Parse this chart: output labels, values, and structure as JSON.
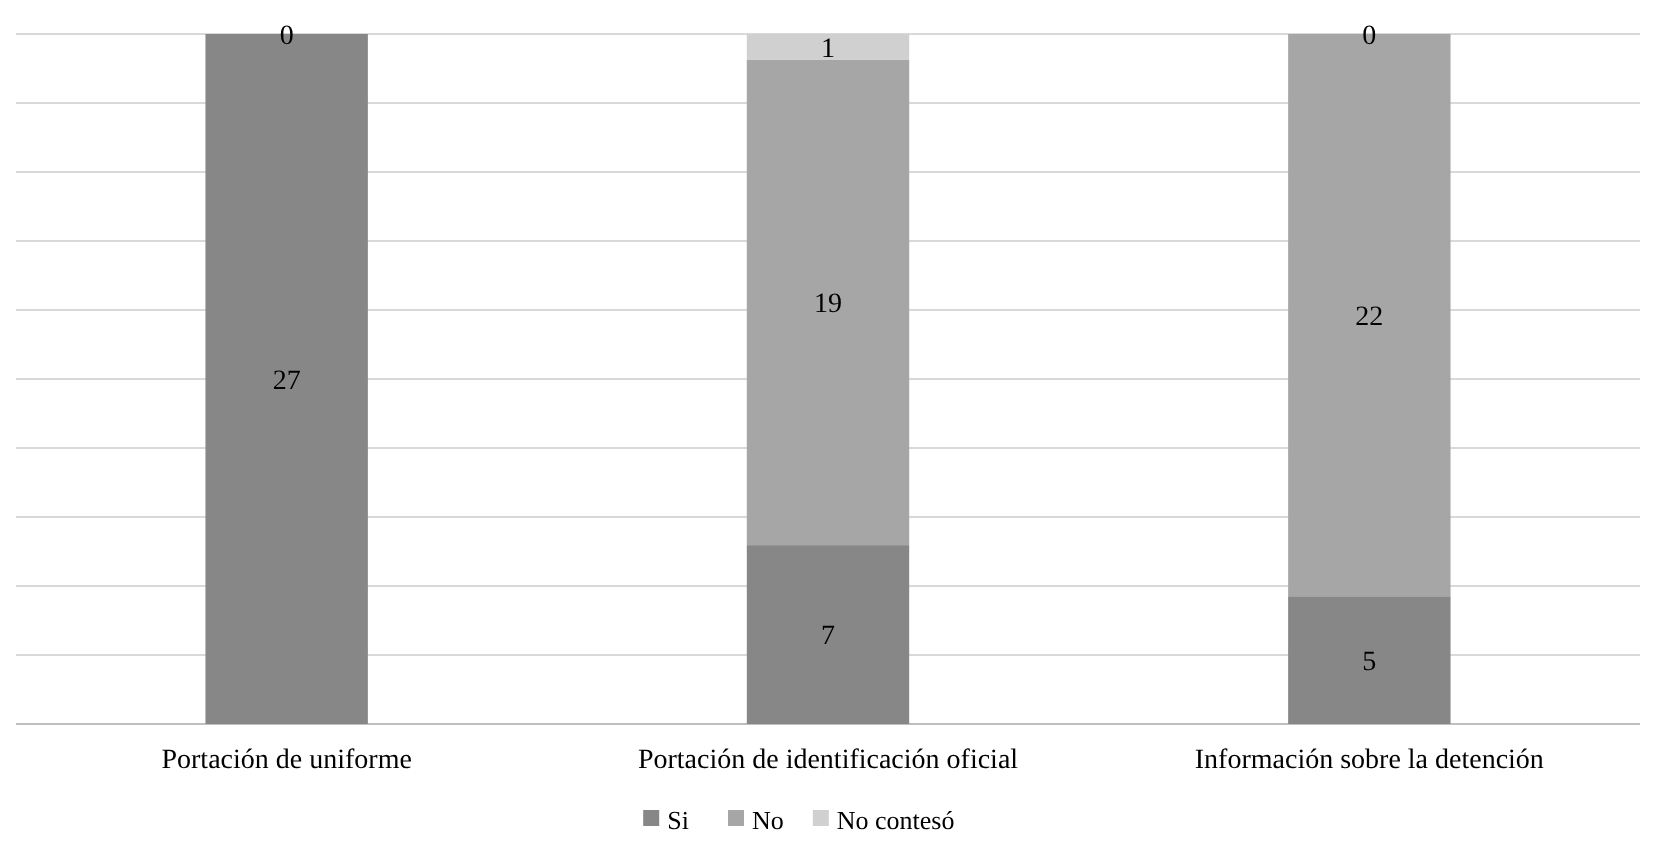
{
  "chart_data": {
    "type": "bar",
    "stacked": true,
    "categories": [
      "Portación de uniforme",
      "Portación de identificación oficial",
      "Información sobre la detención"
    ],
    "series": [
      {
        "name": "Si",
        "color": "#878787",
        "values": [
          27,
          7,
          5
        ]
      },
      {
        "name": "No",
        "color": "#a6a6a6",
        "values": [
          0,
          19,
          22
        ]
      },
      {
        "name": "No contesó",
        "color": "#d0d0d0",
        "values": [
          null,
          1,
          0
        ]
      }
    ],
    "ylim": [
      0,
      27
    ],
    "yticks": [
      {
        "value": 0,
        "label": null
      },
      {
        "value": 2.7,
        "label": null
      },
      {
        "value": 5.4,
        "label": null
      },
      {
        "value": 8.1,
        "label": null
      },
      {
        "value": 10.8,
        "label": null
      },
      {
        "value": 13.5,
        "label": null
      },
      {
        "value": 16.2,
        "label": null
      },
      {
        "value": 18.9,
        "label": null
      },
      {
        "value": 21.6,
        "label": null
      },
      {
        "value": 24.3,
        "label": null
      },
      {
        "value": 27,
        "label": null
      }
    ],
    "grid": "y",
    "data_labels": true,
    "legend": "bottom",
    "tick_labels": "x"
  }
}
